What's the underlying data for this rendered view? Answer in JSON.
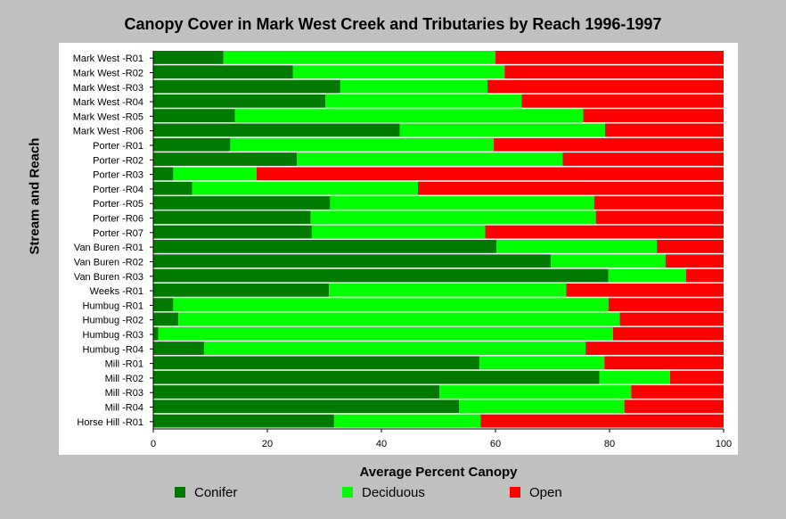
{
  "chart_data": {
    "type": "bar",
    "orientation": "horizontal",
    "stacked": true,
    "title": "Canopy Cover in Mark West Creek and Tributaries by Reach 1996-1997",
    "xlabel": "Average Percent Canopy",
    "ylabel": "Stream and Reach",
    "xlim": [
      0,
      100
    ],
    "xticks": [
      "0",
      "20",
      "40",
      "60",
      "80",
      "100"
    ],
    "grid": false,
    "legend_position": "bottom",
    "categories": [
      "Mark West -R01",
      "Mark West -R02",
      "Mark West -R03",
      "Mark West -R04",
      "Mark West -R05",
      "Mark West -R06",
      "Porter -R01",
      "Porter -R02",
      "Porter -R03",
      "Porter -R04",
      "Porter -R05",
      "Porter -R06",
      "Porter -R07",
      "Van Buren -R01",
      "Van Buren -R02",
      "Van Buren -R03",
      "Weeks -R01",
      "Humbug -R01",
      "Humbug -R02",
      "Humbug -R03",
      "Humbug -R04",
      "Mill -R01",
      "Mill -R02",
      "Mill -R03",
      "Mill -R04",
      "Horse Hill -R01"
    ],
    "series": [
      {
        "name": "Conifer",
        "color": "#007a00",
        "values": [
          12.3,
          24.5,
          32.8,
          30.2,
          14.3,
          43.2,
          13.5,
          25.2,
          3.5,
          6.8,
          31.0,
          27.6,
          27.8,
          60.2,
          69.7,
          79.8,
          30.8,
          3.5,
          4.4,
          0.9,
          8.9,
          57.2,
          78.2,
          50.2,
          53.6,
          31.7
        ]
      },
      {
        "name": "Deciduous",
        "color": "#00ff00",
        "values": [
          47.7,
          37.1,
          25.8,
          34.4,
          61.1,
          36.0,
          46.2,
          46.6,
          14.6,
          39.6,
          46.3,
          50.0,
          30.4,
          28.1,
          20.1,
          13.6,
          41.6,
          76.3,
          77.4,
          79.7,
          66.9,
          21.9,
          12.4,
          33.6,
          29.0,
          25.7
        ]
      },
      {
        "name": "Open",
        "color": "#ff0000",
        "values": [
          40.0,
          38.4,
          41.4,
          35.4,
          24.6,
          20.8,
          40.3,
          28.2,
          81.9,
          53.6,
          22.7,
          22.4,
          41.8,
          11.7,
          10.2,
          6.6,
          27.6,
          20.2,
          18.2,
          19.4,
          24.2,
          20.9,
          9.4,
          16.2,
          17.4,
          42.6
        ]
      }
    ]
  }
}
